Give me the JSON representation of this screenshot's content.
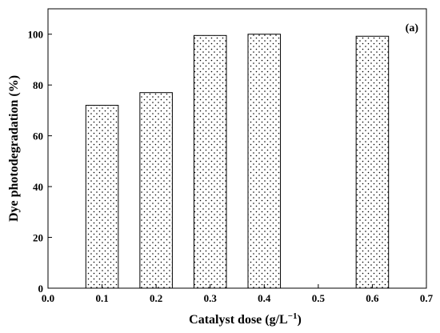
{
  "chart_data": {
    "type": "bar",
    "panel_label": "(a)",
    "xlabel_prefix": "Catalyst dose (g/L",
    "xlabel_sup": "−1",
    "xlabel_suffix": ")",
    "ylabel": "Dye photodegradation (%)",
    "x": [
      0.1,
      0.2,
      0.3,
      0.4,
      0.6
    ],
    "values": [
      72,
      77,
      99.5,
      100,
      99.2
    ],
    "bar_width": 0.06,
    "xlim": [
      0.0,
      0.7
    ],
    "ylim": [
      0,
      110
    ],
    "xticks": [
      "0.0",
      "0.1",
      "0.2",
      "0.3",
      "0.4",
      "0.5",
      "0.6",
      "0.7"
    ],
    "yticks": [
      "0",
      "20",
      "40",
      "60",
      "80",
      "100"
    ],
    "pattern": "dotted",
    "bar_color": "#ffffff",
    "grid": false
  }
}
